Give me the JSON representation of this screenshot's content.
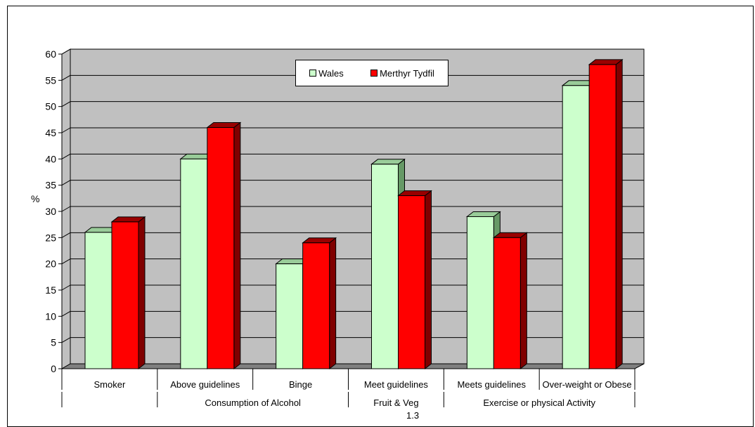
{
  "chart_data": {
    "type": "bar",
    "title": "",
    "ylabel": "%",
    "ylim": [
      0,
      60
    ],
    "ytick_step": 5,
    "yticks": [
      "0",
      "5",
      "10",
      "15",
      "20",
      "25",
      "30",
      "35",
      "40",
      "45",
      "50",
      "55",
      "60"
    ],
    "grid": true,
    "legend_position": "top-center",
    "categories": [
      "Smoker",
      "Above guidelines",
      "Binge",
      "Meet guidelines",
      "Meets guidelines",
      "Over-weight or Obese"
    ],
    "groups": [
      {
        "label": "",
        "span": [
          0,
          0
        ]
      },
      {
        "label": "Consumption of Alcohol",
        "span": [
          1,
          2
        ]
      },
      {
        "label": "Fruit & Veg",
        "span": [
          3,
          3
        ]
      },
      {
        "label": "Exercise or physical Activity",
        "span": [
          4,
          5
        ]
      }
    ],
    "group_label_row": [
      "Consumption of Alcohol",
      "Fruit & Veg",
      "Exercise or physical Activity"
    ],
    "series": [
      {
        "name": "Wales",
        "color": "#ccffcc",
        "values": [
          26,
          40,
          20,
          39,
          29,
          54
        ]
      },
      {
        "name": "Merthyr Tydfil",
        "color": "#ff0000",
        "values": [
          28,
          46,
          24,
          33,
          25,
          58
        ]
      }
    ],
    "bottom_text": "1.3"
  }
}
